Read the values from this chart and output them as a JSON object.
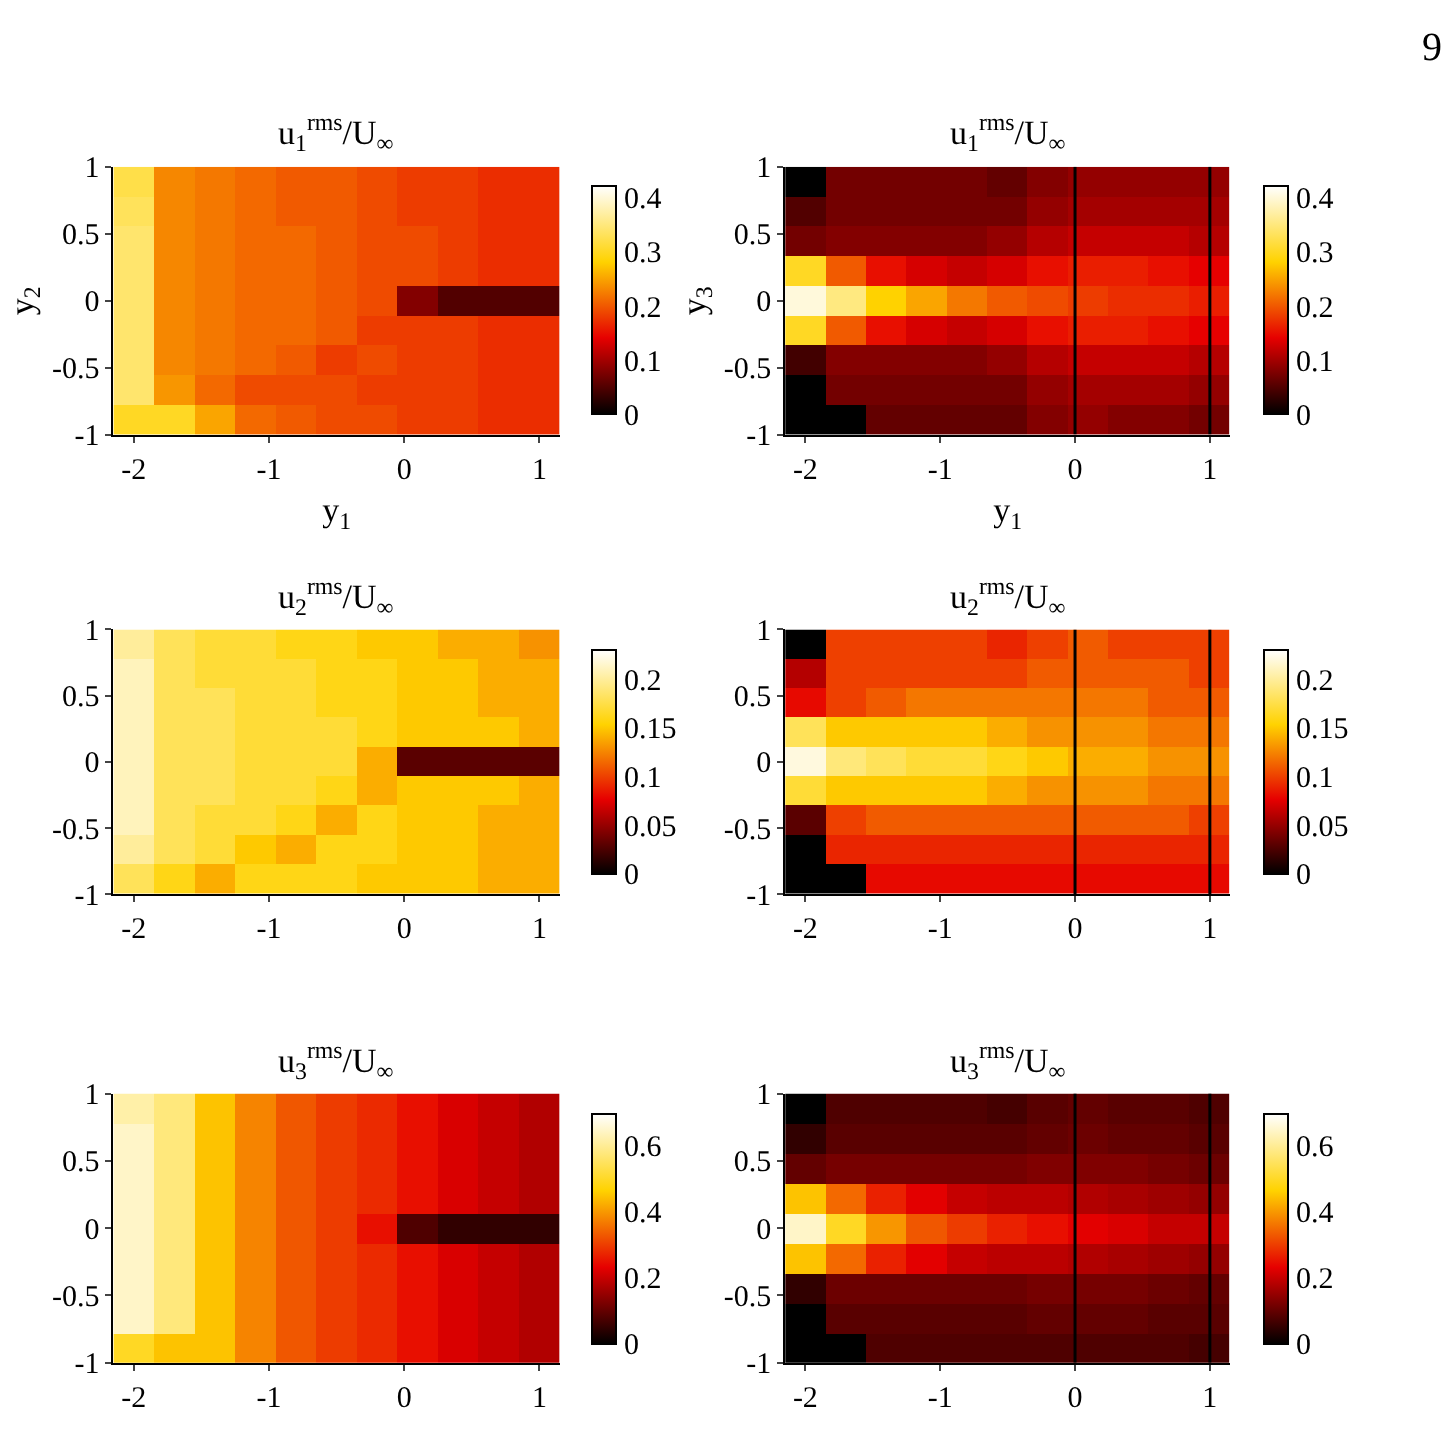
{
  "chart_data": [
    {
      "type": "heatmap",
      "title": "u$_{1}$$^{rms}$/U$_{∞}$",
      "xlabel": "y$_{1}$",
      "ylabel": "y$_{2}$",
      "annotations": [
        "9"
      ],
      "xlim": [
        -2.15,
        1.15
      ],
      "ylim": [
        -1,
        1
      ],
      "xticks": [
        -2,
        -1,
        0,
        1
      ],
      "yticks": [
        -1,
        -0.5,
        0,
        0.5,
        1
      ],
      "clim": [
        0,
        0.42
      ],
      "cticks": [
        0,
        0.1,
        0.2,
        0.3,
        0.4
      ],
      "cells": [
        [
          0.32,
          0.23,
          0.22,
          0.21,
          0.2,
          0.2,
          0.19,
          0.18,
          0.18,
          0.17,
          0.17
        ],
        [
          0.33,
          0.23,
          0.22,
          0.21,
          0.2,
          0.2,
          0.19,
          0.18,
          0.18,
          0.17,
          0.17
        ],
        [
          0.34,
          0.23,
          0.22,
          0.21,
          0.21,
          0.2,
          0.19,
          0.19,
          0.18,
          0.17,
          0.17
        ],
        [
          0.34,
          0.23,
          0.22,
          0.21,
          0.21,
          0.2,
          0.19,
          0.19,
          0.18,
          0.17,
          0.17
        ],
        [
          0.34,
          0.23,
          0.22,
          0.21,
          0.21,
          0.2,
          0.19,
          0.08,
          0.05,
          0.05,
          0.05
        ],
        [
          0.34,
          0.23,
          0.22,
          0.21,
          0.21,
          0.2,
          0.18,
          0.18,
          0.18,
          0.17,
          0.17
        ],
        [
          0.34,
          0.23,
          0.22,
          0.21,
          0.2,
          0.18,
          0.19,
          0.18,
          0.18,
          0.17,
          0.17
        ],
        [
          0.34,
          0.24,
          0.21,
          0.19,
          0.19,
          0.19,
          0.18,
          0.18,
          0.18,
          0.17,
          0.17
        ],
        [
          0.3,
          0.3,
          0.25,
          0.21,
          0.2,
          0.19,
          0.19,
          0.18,
          0.18,
          0.17,
          0.17
        ]
      ]
    },
    {
      "type": "heatmap",
      "title": "u$_{1}$$^{rms}$/U$_{∞}$",
      "xlabel": "y$_{1}$",
      "ylabel": "y$_{3}$",
      "xlim": [
        -2.15,
        1.15
      ],
      "ylim": [
        -1,
        1
      ],
      "xticks": [
        -2,
        -1,
        0,
        1
      ],
      "yticks": [
        -1,
        -0.5,
        0,
        0.5,
        1
      ],
      "clim": [
        0,
        0.42
      ],
      "cticks": [
        0,
        0.1,
        0.2,
        0.3,
        0.4
      ],
      "ref_lines": [
        {
          "axis": "x",
          "value": 0,
          "color": "#000000"
        },
        {
          "axis": "x",
          "value": 1,
          "color": "#000000"
        }
      ],
      "cells": [
        [
          0,
          0.07,
          0.07,
          0.07,
          0.07,
          0.06,
          0.08,
          0.09,
          0.09,
          0.09,
          0.09
        ],
        [
          0.05,
          0.07,
          0.07,
          0.07,
          0.07,
          0.07,
          0.09,
          0.1,
          0.1,
          0.1,
          0.1
        ],
        [
          0.07,
          0.08,
          0.08,
          0.08,
          0.08,
          0.09,
          0.11,
          0.12,
          0.12,
          0.12,
          0.11
        ],
        [
          0.3,
          0.2,
          0.15,
          0.13,
          0.12,
          0.13,
          0.15,
          0.16,
          0.16,
          0.15,
          0.14
        ],
        [
          0.4,
          0.35,
          0.28,
          0.25,
          0.22,
          0.2,
          0.19,
          0.18,
          0.17,
          0.17,
          0.16
        ],
        [
          0.3,
          0.2,
          0.15,
          0.13,
          0.12,
          0.13,
          0.15,
          0.16,
          0.16,
          0.15,
          0.14
        ],
        [
          0.04,
          0.08,
          0.08,
          0.08,
          0.08,
          0.09,
          0.11,
          0.12,
          0.12,
          0.12,
          0.11
        ],
        [
          0,
          0.07,
          0.07,
          0.07,
          0.07,
          0.07,
          0.09,
          0.1,
          0.1,
          0.1,
          0.09
        ],
        [
          0,
          0,
          0.06,
          0.06,
          0.06,
          0.06,
          0.08,
          0.09,
          0.08,
          0.08,
          0.07
        ]
      ]
    },
    {
      "type": "heatmap",
      "title": "u$_{2}$$^{rms}$/U$_{∞}$",
      "xlim": [
        -2.15,
        1.15
      ],
      "ylim": [
        -1,
        1
      ],
      "xticks": [
        -2,
        -1,
        0,
        1
      ],
      "yticks": [
        -1,
        -0.5,
        0,
        0.5,
        1
      ],
      "clim": [
        0,
        0.23
      ],
      "cticks": [
        0,
        0.05,
        0.1,
        0.15,
        0.2
      ],
      "cells": [
        [
          0.2,
          0.18,
          0.17,
          0.17,
          0.16,
          0.16,
          0.15,
          0.15,
          0.14,
          0.14,
          0.13
        ],
        [
          0.21,
          0.18,
          0.17,
          0.17,
          0.17,
          0.16,
          0.16,
          0.15,
          0.15,
          0.14,
          0.14
        ],
        [
          0.21,
          0.18,
          0.18,
          0.17,
          0.17,
          0.16,
          0.16,
          0.15,
          0.15,
          0.14,
          0.14
        ],
        [
          0.21,
          0.18,
          0.18,
          0.17,
          0.17,
          0.17,
          0.16,
          0.15,
          0.15,
          0.15,
          0.14
        ],
        [
          0.21,
          0.18,
          0.18,
          0.17,
          0.17,
          0.17,
          0.14,
          0.03,
          0.03,
          0.03,
          0.03
        ],
        [
          0.21,
          0.18,
          0.18,
          0.17,
          0.17,
          0.16,
          0.14,
          0.15,
          0.15,
          0.15,
          0.14
        ],
        [
          0.21,
          0.18,
          0.17,
          0.17,
          0.16,
          0.14,
          0.16,
          0.15,
          0.15,
          0.14,
          0.14
        ],
        [
          0.2,
          0.18,
          0.17,
          0.15,
          0.14,
          0.16,
          0.16,
          0.15,
          0.15,
          0.14,
          0.14
        ],
        [
          0.18,
          0.16,
          0.14,
          0.16,
          0.16,
          0.16,
          0.15,
          0.15,
          0.15,
          0.14,
          0.14
        ]
      ]
    },
    {
      "type": "heatmap",
      "title": "u$_{2}$$^{rms}$/U$_{∞}$",
      "xlim": [
        -2.15,
        1.15
      ],
      "ylim": [
        -1,
        1
      ],
      "xticks": [
        -2,
        -1,
        0,
        1
      ],
      "yticks": [
        -1,
        -0.5,
        0,
        0.5,
        1
      ],
      "clim": [
        0,
        0.23
      ],
      "cticks": [
        0,
        0.05,
        0.1,
        0.15,
        0.2
      ],
      "ref_lines": [
        {
          "axis": "x",
          "value": 0,
          "color": "#000000"
        },
        {
          "axis": "x",
          "value": 1,
          "color": "#000000"
        }
      ],
      "cells": [
        [
          0,
          0.1,
          0.1,
          0.1,
          0.1,
          0.09,
          0.1,
          0.11,
          0.1,
          0.1,
          0.1
        ],
        [
          0.06,
          0.1,
          0.1,
          0.1,
          0.1,
          0.1,
          0.11,
          0.11,
          0.11,
          0.11,
          0.1
        ],
        [
          0.08,
          0.1,
          0.11,
          0.12,
          0.12,
          0.12,
          0.12,
          0.12,
          0.12,
          0.11,
          0.11
        ],
        [
          0.18,
          0.15,
          0.15,
          0.15,
          0.15,
          0.14,
          0.13,
          0.13,
          0.13,
          0.12,
          0.12
        ],
        [
          0.22,
          0.19,
          0.18,
          0.17,
          0.17,
          0.16,
          0.15,
          0.14,
          0.14,
          0.13,
          0.13
        ],
        [
          0.17,
          0.15,
          0.15,
          0.15,
          0.15,
          0.14,
          0.13,
          0.13,
          0.13,
          0.12,
          0.12
        ],
        [
          0.03,
          0.1,
          0.11,
          0.11,
          0.11,
          0.11,
          0.11,
          0.11,
          0.11,
          0.11,
          0.1
        ],
        [
          0,
          0.09,
          0.09,
          0.09,
          0.09,
          0.09,
          0.09,
          0.09,
          0.09,
          0.09,
          0.09
        ],
        [
          0,
          0,
          0.08,
          0.08,
          0.08,
          0.08,
          0.08,
          0.08,
          0.08,
          0.08,
          0.08
        ]
      ]
    },
    {
      "type": "heatmap",
      "title": "u$_{3}$$^{rms}$/U$_{∞}$",
      "xlim": [
        -2.15,
        1.15
      ],
      "ylim": [
        -1,
        1
      ],
      "xticks": [
        -2,
        -1,
        0,
        1
      ],
      "yticks": [
        -1,
        -0.5,
        0,
        0.5,
        1
      ],
      "clim": [
        0,
        0.7
      ],
      "cticks": [
        0,
        0.2,
        0.4,
        0.6
      ],
      "cells": [
        [
          0.62,
          0.58,
          0.45,
          0.38,
          0.33,
          0.3,
          0.28,
          0.25,
          0.22,
          0.2,
          0.18
        ],
        [
          0.65,
          0.58,
          0.45,
          0.38,
          0.33,
          0.3,
          0.28,
          0.25,
          0.22,
          0.2,
          0.18
        ],
        [
          0.65,
          0.58,
          0.45,
          0.38,
          0.33,
          0.3,
          0.28,
          0.25,
          0.22,
          0.2,
          0.18
        ],
        [
          0.65,
          0.58,
          0.45,
          0.38,
          0.33,
          0.3,
          0.28,
          0.25,
          0.22,
          0.2,
          0.18
        ],
        [
          0.65,
          0.58,
          0.45,
          0.38,
          0.33,
          0.3,
          0.25,
          0.08,
          0.05,
          0.05,
          0.05
        ],
        [
          0.65,
          0.58,
          0.45,
          0.38,
          0.33,
          0.3,
          0.28,
          0.25,
          0.22,
          0.2,
          0.18
        ],
        [
          0.65,
          0.58,
          0.45,
          0.38,
          0.33,
          0.3,
          0.28,
          0.25,
          0.22,
          0.2,
          0.18
        ],
        [
          0.65,
          0.58,
          0.45,
          0.38,
          0.33,
          0.3,
          0.28,
          0.25,
          0.22,
          0.2,
          0.18
        ],
        [
          0.5,
          0.45,
          0.45,
          0.38,
          0.33,
          0.3,
          0.28,
          0.25,
          0.22,
          0.2,
          0.18
        ]
      ]
    },
    {
      "type": "heatmap",
      "title": "u$_{3}$$^{rms}$/U$_{∞}$",
      "xlim": [
        -2.15,
        1.15
      ],
      "ylim": [
        -1,
        1
      ],
      "xticks": [
        -2,
        -1,
        0,
        1
      ],
      "yticks": [
        -1,
        -0.5,
        0,
        0.5,
        1
      ],
      "clim": [
        0,
        0.7
      ],
      "cticks": [
        0,
        0.2,
        0.4,
        0.6
      ],
      "ref_lines": [
        {
          "axis": "x",
          "value": 0,
          "color": "#000000"
        },
        {
          "axis": "x",
          "value": 1,
          "color": "#000000"
        }
      ],
      "cells": [
        [
          0,
          0.08,
          0.08,
          0.08,
          0.08,
          0.07,
          0.09,
          0.1,
          0.09,
          0.09,
          0.08
        ],
        [
          0.05,
          0.09,
          0.09,
          0.09,
          0.09,
          0.09,
          0.1,
          0.11,
          0.1,
          0.1,
          0.09
        ],
        [
          0.1,
          0.12,
          0.12,
          0.12,
          0.12,
          0.12,
          0.13,
          0.13,
          0.13,
          0.12,
          0.11
        ],
        [
          0.45,
          0.35,
          0.27,
          0.23,
          0.2,
          0.19,
          0.19,
          0.18,
          0.17,
          0.16,
          0.15
        ],
        [
          0.65,
          0.5,
          0.4,
          0.33,
          0.3,
          0.27,
          0.25,
          0.23,
          0.22,
          0.2,
          0.2
        ],
        [
          0.45,
          0.35,
          0.27,
          0.23,
          0.2,
          0.19,
          0.19,
          0.18,
          0.17,
          0.16,
          0.15
        ],
        [
          0.05,
          0.11,
          0.11,
          0.11,
          0.11,
          0.11,
          0.12,
          0.12,
          0.12,
          0.11,
          0.1
        ],
        [
          0,
          0.09,
          0.09,
          0.09,
          0.09,
          0.09,
          0.1,
          0.1,
          0.1,
          0.09,
          0.09
        ],
        [
          0,
          0,
          0.08,
          0.08,
          0.08,
          0.08,
          0.08,
          0.08,
          0.08,
          0.08,
          0.07
        ]
      ]
    }
  ]
}
